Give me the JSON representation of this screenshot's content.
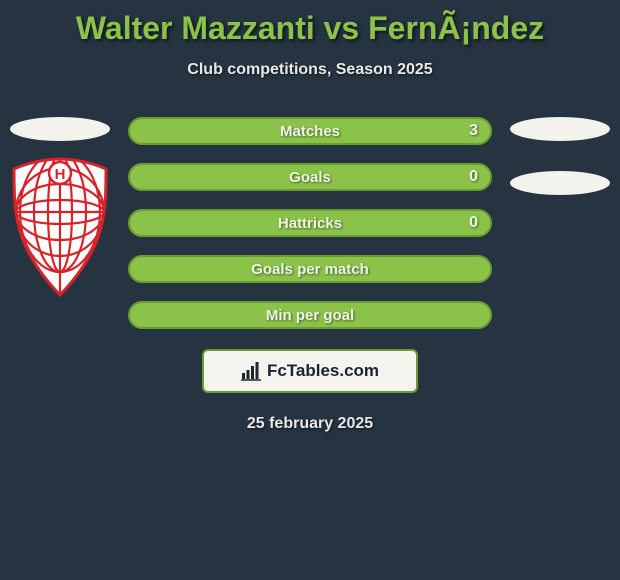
{
  "colors": {
    "page_bg": "#263340",
    "title": "#8bc34a",
    "subtitle": "#e8e8e8",
    "ellipse_left": "#f4f2ec",
    "ellipse_right": "#f4f2ec",
    "stat_bar_bg": "#8bc34a",
    "stat_bar_border": "#6a9c2f",
    "stat_text": "#eef6e5",
    "branding_bg": "#f5f3ed",
    "branding_border": "#6a9c2f",
    "branding_text": "#1a2530",
    "date_text": "#e8e8e8",
    "crest_red": "#d8232a",
    "crest_white": "#ffffff"
  },
  "title": "Walter Mazzanti vs FernÃ¡ndez",
  "subtitle": "Club competitions, Season 2025",
  "stats": [
    {
      "label": "Matches",
      "value": "3"
    },
    {
      "label": "Goals",
      "value": "0"
    },
    {
      "label": "Hattricks",
      "value": "0"
    },
    {
      "label": "Goals per match",
      "value": ""
    },
    {
      "label": "Min per goal",
      "value": ""
    }
  ],
  "branding": "FcTables.com",
  "date": "25 february 2025",
  "layout": {
    "title_fontsize": 32,
    "subtitle_fontsize": 16,
    "stat_fontsize": 15,
    "stat_bar_height": 28,
    "stat_gap": 18,
    "ellipse_w": 100,
    "ellipse_h": 24
  }
}
